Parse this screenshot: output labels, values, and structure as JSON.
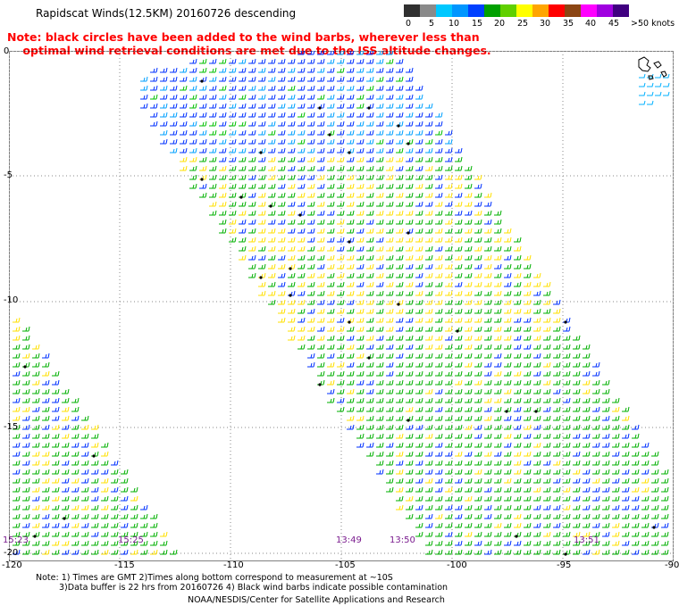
{
  "title": "Rapidscat Winds(12.5KM) 20160726 descending",
  "note_lines": [
    "Note: black circles have been added to the wind barbs, wherever less than",
    "    optimal wind retrieval conditions are met due to the ISS altitude changes."
  ],
  "legend": {
    "labels": [
      "0",
      "5",
      "10",
      "15",
      "20",
      "25",
      "30",
      "35",
      "40",
      "45",
      ">50 knots"
    ],
    "colors": [
      "#303030",
      "#8a8a8a",
      "#00a0ff",
      "#0050ff",
      "#00c000",
      "#ffff00",
      "#ffa500",
      "#ff2020",
      "#8b4513",
      "#ff00ff",
      "#8000c0"
    ]
  },
  "lon_labels": [
    "-120",
    "-115",
    "-110",
    "-105",
    "-100",
    "-95",
    "-90"
  ],
  "lat_labels": [
    "0",
    "-5",
    "-10",
    "-15",
    "-20"
  ],
  "time_labels": [
    "15:23",
    "15:25",
    "13:49",
    "13:50",
    "13:51"
  ],
  "footer": {
    "line1": "Note: 1) Times are GMT 2)Times along bottom correspond to measurement at ~10S",
    "line2": "3)Data buffer is 22 hrs from 20160726 4) Black wind barbs indicate possible contamination",
    "line3": "NOAA/NESDIS/Center for Satellite Applications and Research"
  }
}
